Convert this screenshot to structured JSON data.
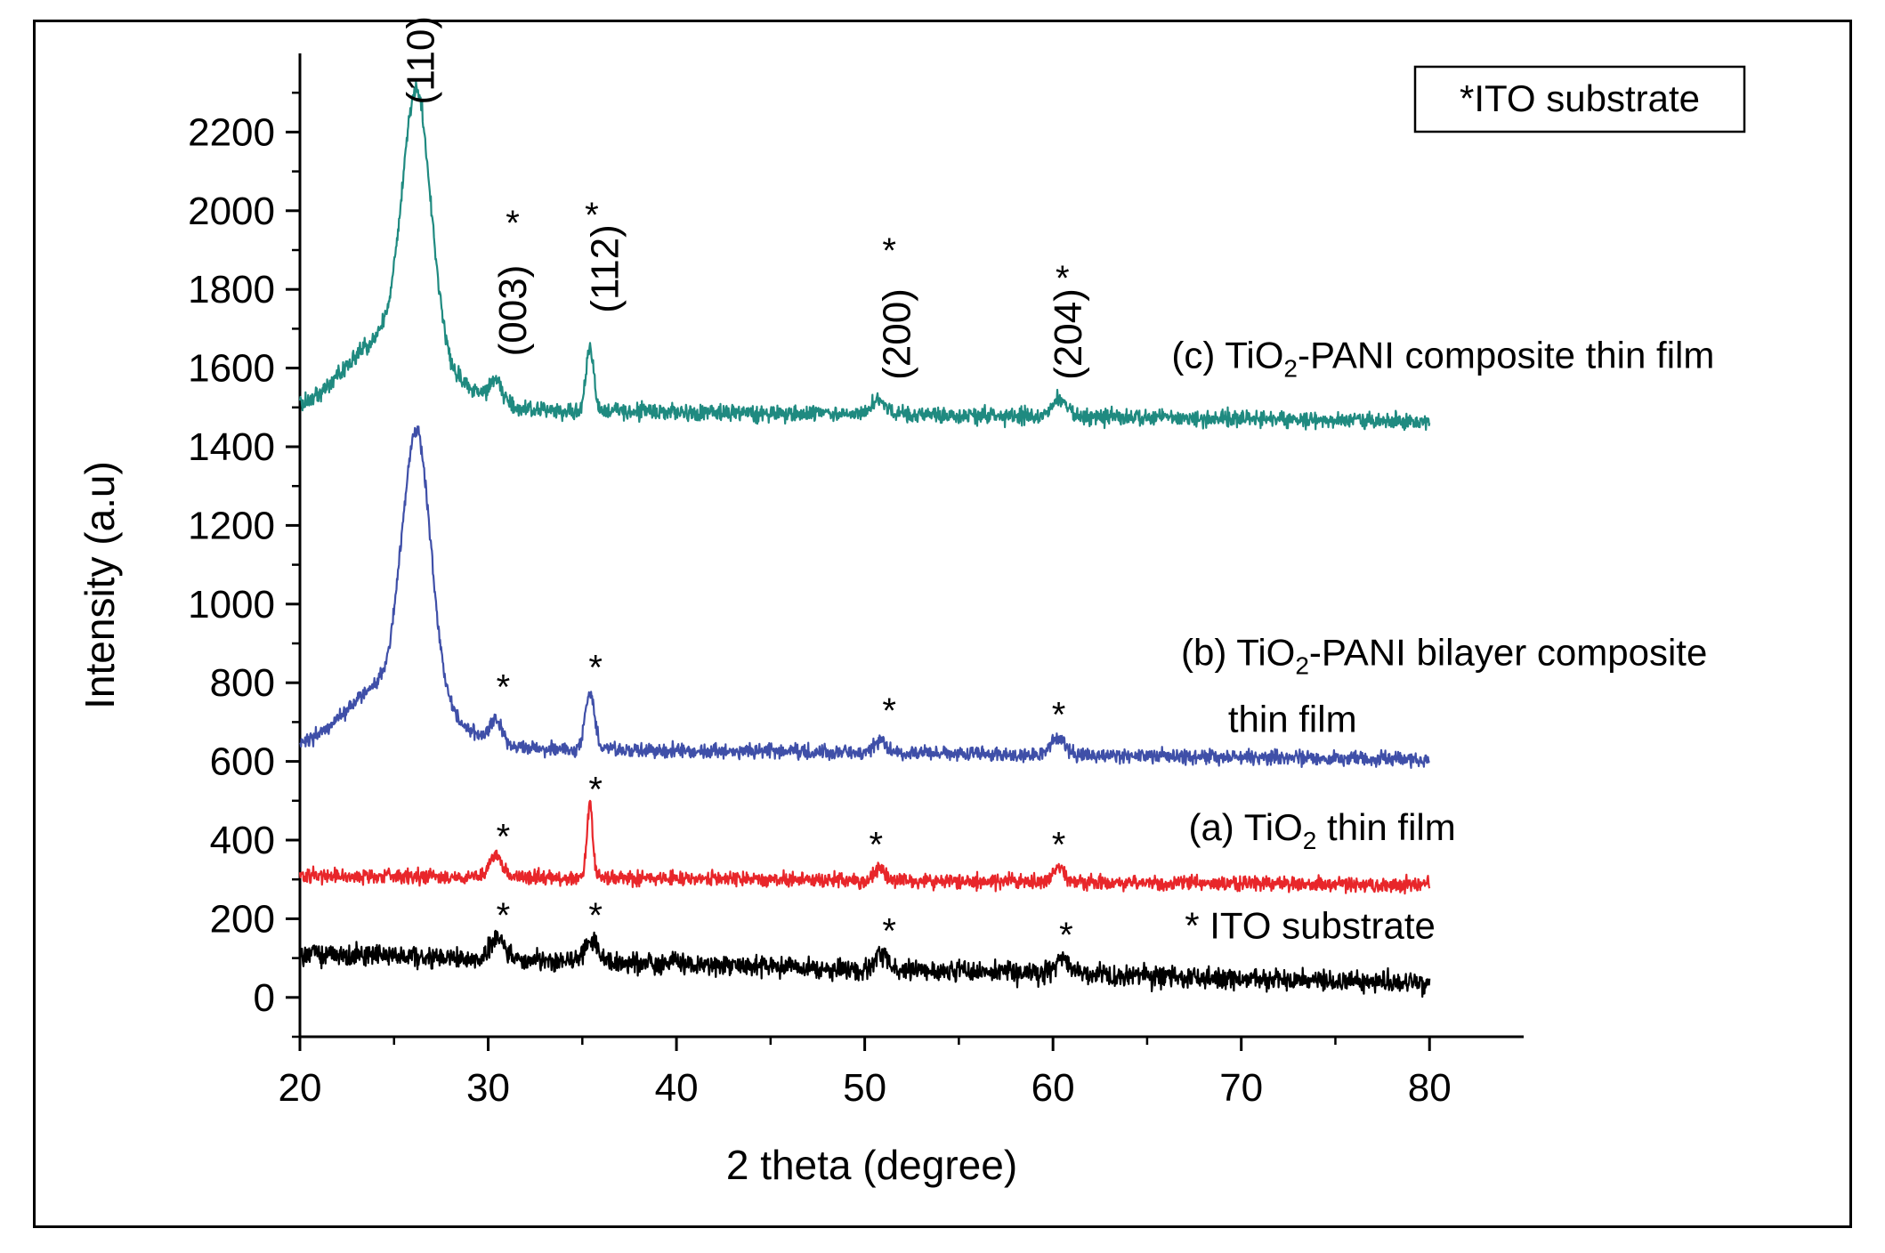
{
  "chart_data": {
    "type": "line",
    "xlabel": "2 theta (degree)",
    "ylabel": "Intensity (a.u)",
    "xlim": [
      20,
      85
    ],
    "ylim": [
      -100,
      2400
    ],
    "xticks": [
      20,
      30,
      40,
      50,
      60,
      70,
      80
    ],
    "yticks": [
      0,
      200,
      400,
      600,
      800,
      1000,
      1200,
      1400,
      1600,
      1800,
      2000,
      2200
    ],
    "grid": false,
    "legend_box": {
      "text": "*ITO substrate",
      "placement": "top-right"
    },
    "series": [
      {
        "name": "(c) TiO2-PANI composite thin film",
        "color": "#1f8a80",
        "baseline_start": 1500,
        "baseline_end": 1465,
        "noise": 16,
        "peaks": [
          {
            "x": 23.5,
            "h": 85,
            "w": 1.6
          },
          {
            "x": 26.2,
            "h": 650,
            "w": 0.75
          },
          {
            "x": 26.0,
            "h": 140,
            "w": 2.2
          },
          {
            "x": 30.4,
            "h": 55,
            "w": 0.35
          },
          {
            "x": 35.4,
            "h": 165,
            "w": 0.2
          },
          {
            "x": 50.8,
            "h": 40,
            "w": 0.35
          },
          {
            "x": 60.4,
            "h": 45,
            "w": 0.4
          }
        ]
      },
      {
        "name": "(b) TiO2-PANI bilayer composite thin film",
        "color": "#3f4fa8",
        "baseline_start": 640,
        "baseline_end": 605,
        "noise": 14,
        "peaks": [
          {
            "x": 23.5,
            "h": 60,
            "w": 1.6
          },
          {
            "x": 26.2,
            "h": 660,
            "w": 0.75
          },
          {
            "x": 25.8,
            "h": 130,
            "w": 2.2
          },
          {
            "x": 30.4,
            "h": 55,
            "w": 0.35
          },
          {
            "x": 35.4,
            "h": 145,
            "w": 0.25
          },
          {
            "x": 50.8,
            "h": 30,
            "w": 0.35
          },
          {
            "x": 60.3,
            "h": 45,
            "w": 0.4
          }
        ]
      },
      {
        "name": "(a) TiO2 thin film",
        "color": "#e8262a",
        "baseline_start": 310,
        "baseline_end": 285,
        "noise": 14,
        "peaks": [
          {
            "x": 30.4,
            "h": 55,
            "w": 0.35
          },
          {
            "x": 35.4,
            "h": 190,
            "w": 0.15
          },
          {
            "x": 50.8,
            "h": 35,
            "w": 0.25
          },
          {
            "x": 60.3,
            "h": 40,
            "w": 0.3
          }
        ]
      },
      {
        "name": "ITO substrate",
        "color": "#000000",
        "baseline_start": 110,
        "baseline_end": 35,
        "noise": 20,
        "peaks": [
          {
            "x": 30.5,
            "h": 65,
            "w": 0.35
          },
          {
            "x": 35.5,
            "h": 55,
            "w": 0.35
          },
          {
            "x": 50.9,
            "h": 45,
            "w": 0.3
          },
          {
            "x": 60.5,
            "h": 35,
            "w": 0.45
          }
        ]
      }
    ],
    "annotations": [
      {
        "text": "(110)",
        "x": 26.4,
        "y": 2270,
        "rotate": -90
      },
      {
        "text": "(003)",
        "x": 31.3,
        "y": 1630,
        "rotate": -90
      },
      {
        "text": "(112)",
        "x": 36.2,
        "y": 1740,
        "rotate": -90
      },
      {
        "text": "(200)",
        "x": 51.7,
        "y": 1570,
        "rotate": -90
      },
      {
        "text": "(204)",
        "x": 60.8,
        "y": 1570,
        "rotate": -90
      },
      {
        "text": "*",
        "x": 31.3,
        "y": 1970
      },
      {
        "text": "*",
        "x": 35.5,
        "y": 1990
      },
      {
        "text": "*",
        "x": 51.3,
        "y": 1900
      },
      {
        "text": "*",
        "x": 60.5,
        "y": 1830
      },
      {
        "text": "*",
        "x": 30.8,
        "y": 790
      },
      {
        "text": "*",
        "x": 35.7,
        "y": 840
      },
      {
        "text": "*",
        "x": 51.3,
        "y": 730
      },
      {
        "text": "*",
        "x": 60.3,
        "y": 720
      },
      {
        "text": "*",
        "x": 30.8,
        "y": 410
      },
      {
        "text": "*",
        "x": 35.7,
        "y": 530
      },
      {
        "text": "*",
        "x": 50.6,
        "y": 390
      },
      {
        "text": "*",
        "x": 60.3,
        "y": 390
      },
      {
        "text": "*",
        "x": 30.8,
        "y": 210
      },
      {
        "text": "*",
        "x": 35.7,
        "y": 210
      },
      {
        "text": "*",
        "x": 51.3,
        "y": 170
      },
      {
        "text": "*",
        "x": 60.7,
        "y": 160
      }
    ],
    "series_labels": [
      {
        "prefix": "(c) TiO",
        "sub": "2",
        "suffix": "-PANI composite thin film",
        "x": 66.3,
        "y": 1600
      },
      {
        "prefix": "(b) TiO",
        "sub": "2",
        "suffix": "-PANI bilayer composite",
        "x": 66.8,
        "y": 845
      },
      {
        "prefix": "thin film",
        "sub": "",
        "suffix": "",
        "x": 69.3,
        "y": 675
      },
      {
        "prefix": "(a) TiO",
        "sub": "2",
        "suffix": " thin film",
        "x": 67.2,
        "y": 400
      },
      {
        "prefix": "*  ITO substrate",
        "sub": "",
        "suffix": "",
        "x": 67.0,
        "y": 150
      }
    ]
  }
}
